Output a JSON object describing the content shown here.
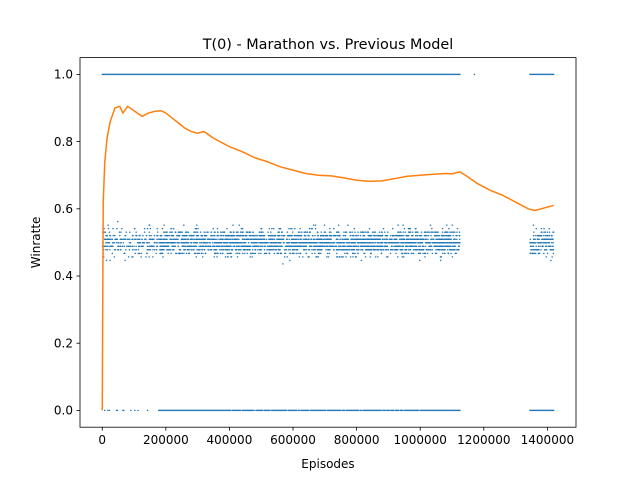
{
  "chart_data": {
    "type": "scatter",
    "title": "T(0) - Marathon vs. Previous Model",
    "xlabel": "Episodes",
    "ylabel": "Winratte",
    "xlim": [
      -70000,
      1490000
    ],
    "ylim": [
      -0.05,
      1.05
    ],
    "xticks": [
      0,
      200000,
      400000,
      600000,
      800000,
      1000000,
      1200000,
      1400000
    ],
    "xtick_labels": [
      "0",
      "200000",
      "400000",
      "600000",
      "800000",
      "1000000",
      "1200000",
      "1400000"
    ],
    "yticks": [
      0.0,
      0.2,
      0.4,
      0.6,
      0.8,
      1.0
    ],
    "ytick_labels": [
      "0.0",
      "0.2",
      "0.4",
      "0.6",
      "0.8",
      "1.0"
    ],
    "grid": false,
    "series": [
      {
        "kind": "scatter",
        "color": "#1f77b4",
        "episode_ranges": [
          [
            0,
            1125000
          ],
          [
            1170000,
            1170000
          ],
          [
            1345000,
            1420000
          ]
        ],
        "scatter_y_center": 0.5,
        "scatter_y_spread": [
          0.31,
          0.69
        ],
        "bands": [
          0.0,
          1.0
        ]
      },
      {
        "kind": "line",
        "color": "#ff7f0e",
        "x": [
          0,
          3000,
          8000,
          15000,
          25000,
          40000,
          55000,
          65000,
          80000,
          95000,
          110000,
          125000,
          145000,
          165000,
          185000,
          200000,
          220000,
          240000,
          260000,
          280000,
          300000,
          320000,
          350000,
          380000,
          400000,
          440000,
          480000,
          520000,
          560000,
          600000,
          640000,
          680000,
          720000,
          760000,
          800000,
          840000,
          880000,
          920000,
          960000,
          1000000,
          1040000,
          1080000,
          1100000,
          1125000,
          1150000,
          1180000,
          1220000,
          1260000,
          1300000,
          1340000,
          1360000,
          1380000,
          1420000
        ],
        "y": [
          0.0,
          0.62,
          0.74,
          0.81,
          0.86,
          0.9,
          0.905,
          0.885,
          0.905,
          0.895,
          0.885,
          0.875,
          0.885,
          0.89,
          0.892,
          0.885,
          0.87,
          0.855,
          0.84,
          0.83,
          0.825,
          0.83,
          0.81,
          0.795,
          0.785,
          0.77,
          0.752,
          0.74,
          0.725,
          0.715,
          0.705,
          0.7,
          0.698,
          0.692,
          0.685,
          0.682,
          0.683,
          0.69,
          0.697,
          0.7,
          0.703,
          0.705,
          0.704,
          0.71,
          0.695,
          0.675,
          0.655,
          0.64,
          0.62,
          0.6,
          0.595,
          0.6,
          0.61
        ]
      }
    ]
  }
}
